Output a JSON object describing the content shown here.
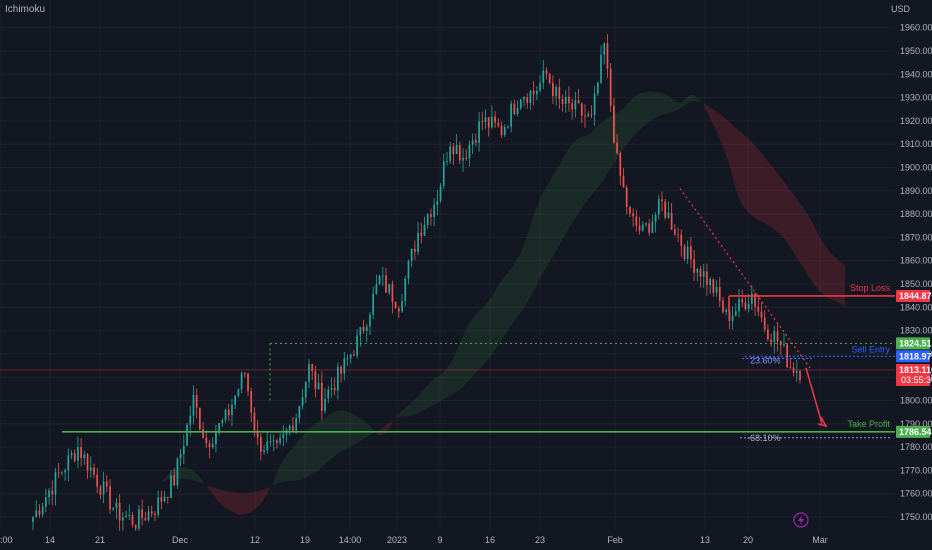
{
  "header": {
    "indicator": "Ichimoku",
    "currency": "USD"
  },
  "chart_data": {
    "type": "candlestick",
    "ylim": [
      1745,
      1965
    ],
    "y_ticks": [
      1750,
      1760,
      1770,
      1780,
      1790,
      1800,
      1810,
      1820,
      1830,
      1840,
      1850,
      1860,
      1870,
      1880,
      1890,
      1900,
      1910,
      1920,
      1930,
      1940,
      1950,
      1960
    ],
    "y_tick_labels": [
      "1750.000",
      "1760.000",
      "1770.000",
      "1780.000",
      "1790.000",
      "1800.000",
      "1810.000",
      "1820.000",
      "1830.000",
      "1840.000",
      "1850.000",
      "1860.000",
      "1870.000",
      "1880.000",
      "1890.000",
      "1900.000",
      "1910.000",
      "1920.000",
      "1930.000",
      "1940.000",
      "1950.000",
      "1960.000"
    ],
    "x_ticks": [
      ":00",
      "14",
      "21",
      "Dec",
      "12",
      "19",
      "14:00",
      "2023",
      "9",
      "16",
      "23",
      "Feb",
      "13",
      "20",
      "Mar"
    ],
    "trend_points": [
      [
        0,
        1750
      ],
      [
        8,
        1768
      ],
      [
        14,
        1780
      ],
      [
        20,
        1766
      ],
      [
        26,
        1752
      ],
      [
        32,
        1748
      ],
      [
        38,
        1754
      ],
      [
        44,
        1766
      ],
      [
        50,
        1800
      ],
      [
        54,
        1782
      ],
      [
        60,
        1792
      ],
      [
        66,
        1812
      ],
      [
        70,
        1782
      ],
      [
        76,
        1778
      ],
      [
        82,
        1794
      ],
      [
        86,
        1814
      ],
      [
        90,
        1800
      ],
      [
        96,
        1812
      ],
      [
        102,
        1828
      ],
      [
        108,
        1852
      ],
      [
        114,
        1842
      ],
      [
        120,
        1872
      ],
      [
        126,
        1888
      ],
      [
        130,
        1912
      ],
      [
        134,
        1905
      ],
      [
        140,
        1920
      ],
      [
        146,
        1916
      ],
      [
        152,
        1932
      ],
      [
        156,
        1932
      ],
      [
        160,
        1940
      ],
      [
        164,
        1928
      ],
      [
        170,
        1924
      ],
      [
        174,
        1920
      ],
      [
        178,
        1952
      ],
      [
        182,
        1902
      ],
      [
        186,
        1878
      ],
      [
        190,
        1872
      ],
      [
        196,
        1884
      ],
      [
        200,
        1874
      ],
      [
        204,
        1862
      ],
      [
        208,
        1856
      ],
      [
        212,
        1848
      ],
      [
        216,
        1836
      ],
      [
        220,
        1840
      ],
      [
        224,
        1846
      ],
      [
        228,
        1832
      ],
      [
        232,
        1826
      ],
      [
        236,
        1815
      ],
      [
        239,
        1813
      ]
    ],
    "levels": {
      "stop_loss": {
        "label": "Stop Loss",
        "value": 1844.87,
        "tag": "1844.870",
        "color": "#f23645"
      },
      "sell_entry": {
        "label": "Sell Entry",
        "value": 1818.975,
        "tag": "1818.975",
        "color": "#2962ff"
      },
      "take_profit": {
        "label": "Take Profit",
        "value": 1786.545,
        "tag": "1786.545",
        "color": "#4caf50"
      },
      "resistance": {
        "value": 1824.515,
        "tag": "1824.515",
        "color": "#4caf50"
      },
      "current": {
        "value": 1813.11,
        "tag": "1813.110",
        "countdown": "03:55:36",
        "color": "#f23645"
      }
    },
    "fib_labels": {
      "fib_23": "23.60%",
      "fib_neg68": "-68.10%"
    }
  }
}
